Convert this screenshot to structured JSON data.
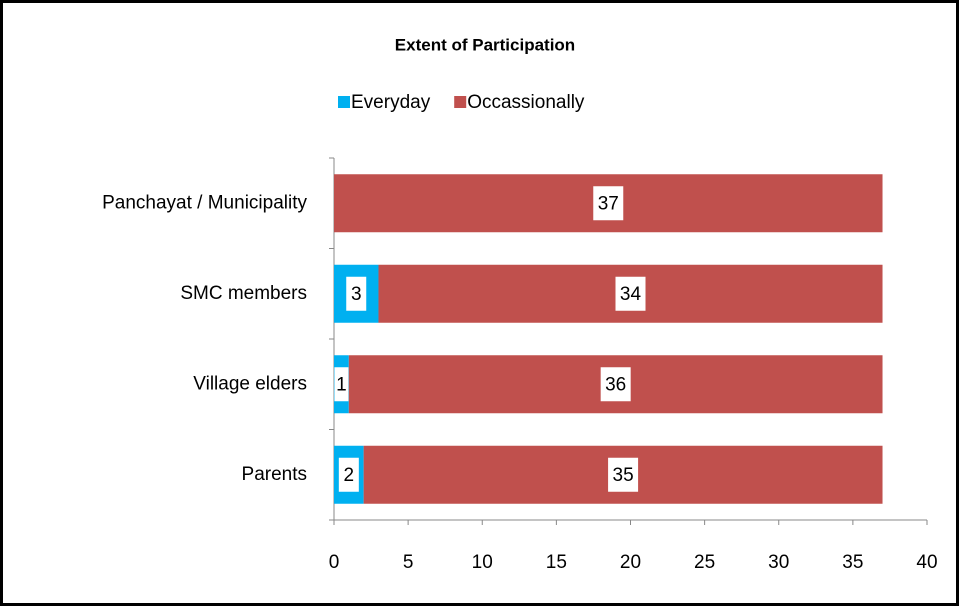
{
  "chart_data": {
    "type": "stacked-barh",
    "title": "Extent of Participation",
    "categories": [
      "Panchayat / Municipality",
      "SMC members",
      "Village elders",
      "Parents"
    ],
    "series": [
      {
        "name": "Everyday",
        "color": "#00b0f0",
        "values": [
          null,
          3,
          1,
          2
        ]
      },
      {
        "name": "Occassionally",
        "color": "#c0504d",
        "values": [
          37,
          34,
          36,
          35
        ]
      }
    ],
    "xlim": [
      0,
      40
    ],
    "xticks": [
      0,
      5,
      10,
      15,
      20,
      25,
      30,
      35,
      40
    ],
    "legend": "top"
  }
}
